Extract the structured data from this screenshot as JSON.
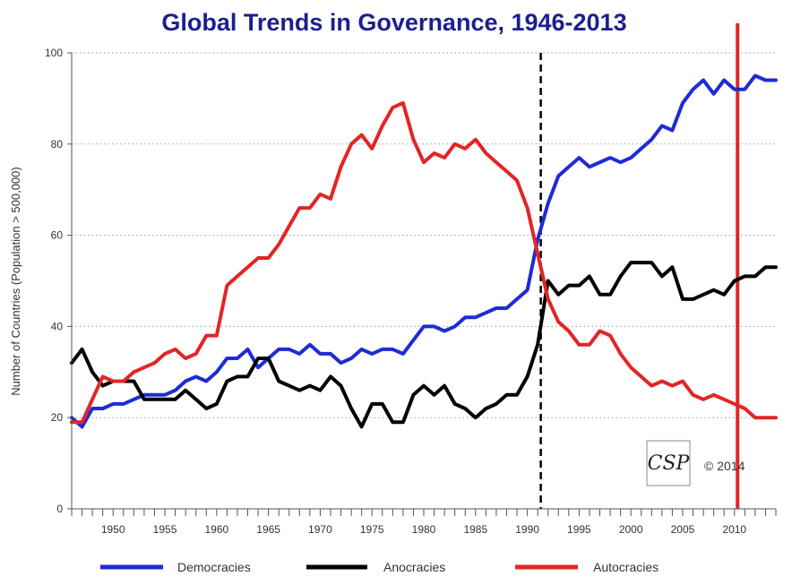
{
  "chart_data": {
    "type": "line",
    "title": "Global Trends in Governance, 1946-2013",
    "xlabel": "",
    "ylabel": "Number of Countries (Population > 500,000)",
    "xlim": [
      1946,
      2014
    ],
    "ylim": [
      0,
      100
    ],
    "x_ticks": [
      "1950",
      "1955",
      "1960",
      "1965",
      "1970",
      "1975",
      "1980",
      "1985",
      "1990",
      "1995",
      "2000",
      "2005",
      "2010"
    ],
    "y_ticks": [
      "0",
      "20",
      "40",
      "60",
      "80",
      "100"
    ],
    "grid": "horizontal dotted",
    "legend_placement": "bottom",
    "series": [
      {
        "name": "Democracies",
        "color": "#1f2bd6",
        "points": [
          [
            1946,
            20
          ],
          [
            1947,
            18
          ],
          [
            1948,
            22
          ],
          [
            1949,
            22
          ],
          [
            1950,
            23
          ],
          [
            1951,
            23
          ],
          [
            1952,
            24
          ],
          [
            1953,
            25
          ],
          [
            1954,
            25
          ],
          [
            1955,
            25
          ],
          [
            1956,
            26
          ],
          [
            1957,
            28
          ],
          [
            1958,
            29
          ],
          [
            1959,
            28
          ],
          [
            1960,
            30
          ],
          [
            1961,
            33
          ],
          [
            1962,
            33
          ],
          [
            1963,
            35
          ],
          [
            1964,
            31
          ],
          [
            1965,
            33
          ],
          [
            1966,
            35
          ],
          [
            1967,
            35
          ],
          [
            1968,
            34
          ],
          [
            1969,
            36
          ],
          [
            1970,
            34
          ],
          [
            1971,
            34
          ],
          [
            1972,
            32
          ],
          [
            1973,
            33
          ],
          [
            1974,
            35
          ],
          [
            1975,
            34
          ],
          [
            1976,
            35
          ],
          [
            1977,
            35
          ],
          [
            1978,
            34
          ],
          [
            1979,
            37
          ],
          [
            1980,
            40
          ],
          [
            1981,
            40
          ],
          [
            1982,
            39
          ],
          [
            1983,
            40
          ],
          [
            1984,
            42
          ],
          [
            1985,
            42
          ],
          [
            1986,
            43
          ],
          [
            1987,
            44
          ],
          [
            1988,
            44
          ],
          [
            1989,
            46
          ],
          [
            1990,
            48
          ],
          [
            1991,
            59
          ],
          [
            1992,
            67
          ],
          [
            1993,
            73
          ],
          [
            1994,
            75
          ],
          [
            1995,
            77
          ],
          [
            1996,
            75
          ],
          [
            1997,
            76
          ],
          [
            1998,
            77
          ],
          [
            1999,
            76
          ],
          [
            2000,
            77
          ],
          [
            2001,
            79
          ],
          [
            2002,
            81
          ],
          [
            2003,
            84
          ],
          [
            2004,
            83
          ],
          [
            2005,
            89
          ],
          [
            2006,
            92
          ],
          [
            2007,
            94
          ],
          [
            2008,
            91
          ],
          [
            2009,
            94
          ],
          [
            2010,
            92
          ],
          [
            2011,
            92
          ],
          [
            2012,
            95
          ],
          [
            2013,
            94
          ],
          [
            2014,
            94
          ]
        ]
      },
      {
        "name": "Anocracies",
        "color": "#000000",
        "points": [
          [
            1946,
            32
          ],
          [
            1947,
            35
          ],
          [
            1948,
            30
          ],
          [
            1949,
            27
          ],
          [
            1950,
            28
          ],
          [
            1951,
            28
          ],
          [
            1952,
            28
          ],
          [
            1953,
            24
          ],
          [
            1954,
            24
          ],
          [
            1955,
            24
          ],
          [
            1956,
            24
          ],
          [
            1957,
            26
          ],
          [
            1958,
            24
          ],
          [
            1959,
            22
          ],
          [
            1960,
            23
          ],
          [
            1961,
            28
          ],
          [
            1962,
            29
          ],
          [
            1963,
            29
          ],
          [
            1964,
            33
          ],
          [
            1965,
            33
          ],
          [
            1966,
            28
          ],
          [
            1967,
            27
          ],
          [
            1968,
            26
          ],
          [
            1969,
            27
          ],
          [
            1970,
            26
          ],
          [
            1971,
            29
          ],
          [
            1972,
            27
          ],
          [
            1973,
            22
          ],
          [
            1974,
            18
          ],
          [
            1975,
            23
          ],
          [
            1976,
            23
          ],
          [
            1977,
            19
          ],
          [
            1978,
            19
          ],
          [
            1979,
            25
          ],
          [
            1980,
            27
          ],
          [
            1981,
            25
          ],
          [
            1982,
            27
          ],
          [
            1983,
            23
          ],
          [
            1984,
            22
          ],
          [
            1985,
            20
          ],
          [
            1986,
            22
          ],
          [
            1987,
            23
          ],
          [
            1988,
            25
          ],
          [
            1989,
            25
          ],
          [
            1990,
            29
          ],
          [
            1991,
            36
          ],
          [
            1992,
            50
          ],
          [
            1993,
            47
          ],
          [
            1994,
            49
          ],
          [
            1995,
            49
          ],
          [
            1996,
            51
          ],
          [
            1997,
            47
          ],
          [
            1998,
            47
          ],
          [
            1999,
            51
          ],
          [
            2000,
            54
          ],
          [
            2001,
            54
          ],
          [
            2002,
            54
          ],
          [
            2003,
            51
          ],
          [
            2004,
            53
          ],
          [
            2005,
            46
          ],
          [
            2006,
            46
          ],
          [
            2007,
            47
          ],
          [
            2008,
            48
          ],
          [
            2009,
            47
          ],
          [
            2010,
            50
          ],
          [
            2011,
            51
          ],
          [
            2012,
            51
          ],
          [
            2013,
            53
          ],
          [
            2014,
            53
          ]
        ]
      },
      {
        "name": "Autocracies",
        "color": "#e32525",
        "points": [
          [
            1946,
            19
          ],
          [
            1947,
            19
          ],
          [
            1948,
            24
          ],
          [
            1949,
            29
          ],
          [
            1950,
            28
          ],
          [
            1951,
            28
          ],
          [
            1952,
            30
          ],
          [
            1953,
            31
          ],
          [
            1954,
            32
          ],
          [
            1955,
            34
          ],
          [
            1956,
            35
          ],
          [
            1957,
            33
          ],
          [
            1958,
            34
          ],
          [
            1959,
            38
          ],
          [
            1960,
            38
          ],
          [
            1961,
            49
          ],
          [
            1962,
            51
          ],
          [
            1963,
            53
          ],
          [
            1964,
            55
          ],
          [
            1965,
            55
          ],
          [
            1966,
            58
          ],
          [
            1967,
            62
          ],
          [
            1968,
            66
          ],
          [
            1969,
            66
          ],
          [
            1970,
            69
          ],
          [
            1971,
            68
          ],
          [
            1972,
            75
          ],
          [
            1973,
            80
          ],
          [
            1974,
            82
          ],
          [
            1975,
            79
          ],
          [
            1976,
            84
          ],
          [
            1977,
            88
          ],
          [
            1978,
            89
          ],
          [
            1979,
            81
          ],
          [
            1980,
            76
          ],
          [
            1981,
            78
          ],
          [
            1982,
            77
          ],
          [
            1983,
            80
          ],
          [
            1984,
            79
          ],
          [
            1985,
            81
          ],
          [
            1986,
            78
          ],
          [
            1987,
            76
          ],
          [
            1988,
            74
          ],
          [
            1989,
            72
          ],
          [
            1990,
            66
          ],
          [
            1991,
            56
          ],
          [
            1992,
            46
          ],
          [
            1993,
            41
          ],
          [
            1994,
            39
          ],
          [
            1995,
            36
          ],
          [
            1996,
            36
          ],
          [
            1997,
            39
          ],
          [
            1998,
            38
          ],
          [
            1999,
            34
          ],
          [
            2000,
            31
          ],
          [
            2001,
            29
          ],
          [
            2002,
            27
          ],
          [
            2003,
            28
          ],
          [
            2004,
            27
          ],
          [
            2005,
            28
          ],
          [
            2006,
            25
          ],
          [
            2007,
            24
          ],
          [
            2008,
            25
          ],
          [
            2009,
            24
          ],
          [
            2010,
            23
          ],
          [
            2011,
            22
          ],
          [
            2012,
            20
          ],
          [
            2013,
            20
          ],
          [
            2014,
            20
          ]
        ]
      }
    ],
    "reference_lines": [
      {
        "x": 1991.3,
        "style": "dashed",
        "color": "#000000"
      },
      {
        "x": 2010.3,
        "style": "solid",
        "color": "#e32525"
      }
    ],
    "annotations": {
      "logo_text": "CSP",
      "copyright": "© 2014"
    }
  }
}
